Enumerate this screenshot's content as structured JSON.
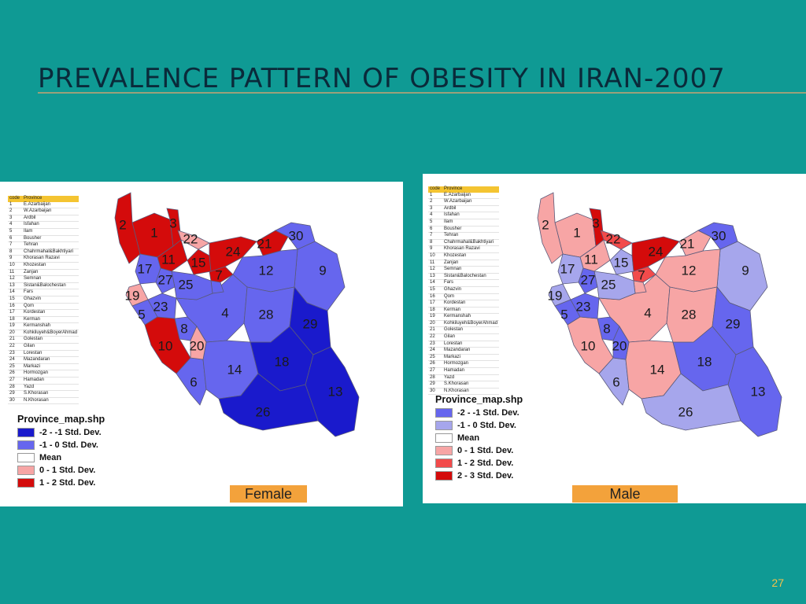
{
  "title": "PREVALENCE PATTERN OF OBESITY IN IRAN-2007",
  "page_number": "27",
  "table": {
    "headers": [
      "code",
      "Province"
    ],
    "rows": [
      {
        "code": "1",
        "name": "E.Azarbaijan"
      },
      {
        "code": "2",
        "name": "W.Azarbaijan"
      },
      {
        "code": "3",
        "name": "Ardbil"
      },
      {
        "code": "4",
        "name": "Isfahan"
      },
      {
        "code": "5",
        "name": "Ilam"
      },
      {
        "code": "6",
        "name": "Bousher"
      },
      {
        "code": "7",
        "name": "Tehran"
      },
      {
        "code": "8",
        "name": "Chahrmahal&Bakhtiyari"
      },
      {
        "code": "9",
        "name": "Khorasan Razavi"
      },
      {
        "code": "10",
        "name": "Khozestan"
      },
      {
        "code": "11",
        "name": "Zanjan"
      },
      {
        "code": "12",
        "name": "Semnan"
      },
      {
        "code": "13",
        "name": "Sistan&Balochestan"
      },
      {
        "code": "14",
        "name": "Fars"
      },
      {
        "code": "15",
        "name": "Ghazvin"
      },
      {
        "code": "16",
        "name": "Qom"
      },
      {
        "code": "17",
        "name": "Kordestan"
      },
      {
        "code": "18",
        "name": "Kerman"
      },
      {
        "code": "19",
        "name": "Kermanshah"
      },
      {
        "code": "20",
        "name": "Kohkiluyeh&BoyerAhmad"
      },
      {
        "code": "21",
        "name": "Golestan"
      },
      {
        "code": "22",
        "name": "Gilan"
      },
      {
        "code": "23",
        "name": "Lorestan"
      },
      {
        "code": "24",
        "name": "Mazandaran"
      },
      {
        "code": "25",
        "name": "Markazi"
      },
      {
        "code": "26",
        "name": "Hormozgan"
      },
      {
        "code": "27",
        "name": "Hamadan"
      },
      {
        "code": "28",
        "name": "Yazd"
      },
      {
        "code": "29",
        "name": "S.Khorasan"
      },
      {
        "code": "30",
        "name": "N.Khorasan"
      }
    ]
  },
  "colors": {
    "darkblue": "#1a1acc",
    "blue": "#6666ee",
    "lightblue": "#a6a6ec",
    "white": "#ffffff",
    "pink": "#f7a5a5",
    "red": "#f24b4b",
    "darkred": "#d40b0b"
  },
  "female": {
    "label": "Female",
    "legend": {
      "title": "Province_map.shp",
      "items": [
        {
          "label": "-2 - -1 Std. Dev.",
          "color": "darkblue"
        },
        {
          "label": "-1 - 0 Std. Dev.",
          "color": "blue"
        },
        {
          "label": "Mean",
          "color": "white"
        },
        {
          "label": "0 - 1 Std. Dev.",
          "color": "pink"
        },
        {
          "label": "1 - 2 Std. Dev.",
          "color": "darkred"
        }
      ]
    },
    "province_classes": {
      "1": "darkred",
      "2": "darkred",
      "3": "darkred",
      "4": "blue",
      "5": "blue",
      "6": "blue",
      "7": "darkred",
      "8": "blue",
      "9": "blue",
      "10": "darkred",
      "11": "darkred",
      "12": "blue",
      "13": "darkblue",
      "14": "blue",
      "15": "darkred",
      "16": "blue",
      "17": "blue",
      "18": "darkblue",
      "19": "pink",
      "20": "pink",
      "21": "darkred",
      "22": "pink",
      "23": "blue",
      "24": "darkred",
      "25": "blue",
      "26": "darkblue",
      "27": "blue",
      "28": "blue",
      "29": "darkblue",
      "30": "blue"
    }
  },
  "male": {
    "label": "Male",
    "legend": {
      "title": "Province_map.shp",
      "items": [
        {
          "label": "-2 - -1 Std. Dev.",
          "color": "blue"
        },
        {
          "label": "-1 - 0 Std. Dev.",
          "color": "lightblue"
        },
        {
          "label": "Mean",
          "color": "white"
        },
        {
          "label": "0 - 1 Std. Dev.",
          "color": "pink"
        },
        {
          "label": "1 - 2 Std. Dev.",
          "color": "red"
        },
        {
          "label": "2 - 3 Std. Dev.",
          "color": "darkred"
        }
      ]
    },
    "province_classes": {
      "1": "pink",
      "2": "pink",
      "3": "darkred",
      "4": "pink",
      "5": "blue",
      "6": "lightblue",
      "7": "red",
      "8": "blue",
      "9": "lightblue",
      "10": "pink",
      "11": "pink",
      "12": "pink",
      "13": "blue",
      "14": "pink",
      "15": "lightblue",
      "16": "pink",
      "17": "lightblue",
      "18": "blue",
      "19": "lightblue",
      "20": "blue",
      "21": "pink",
      "22": "red",
      "23": "blue",
      "24": "darkred",
      "25": "lightblue",
      "26": "lightblue",
      "27": "blue",
      "28": "pink",
      "29": "blue",
      "30": "blue"
    }
  }
}
